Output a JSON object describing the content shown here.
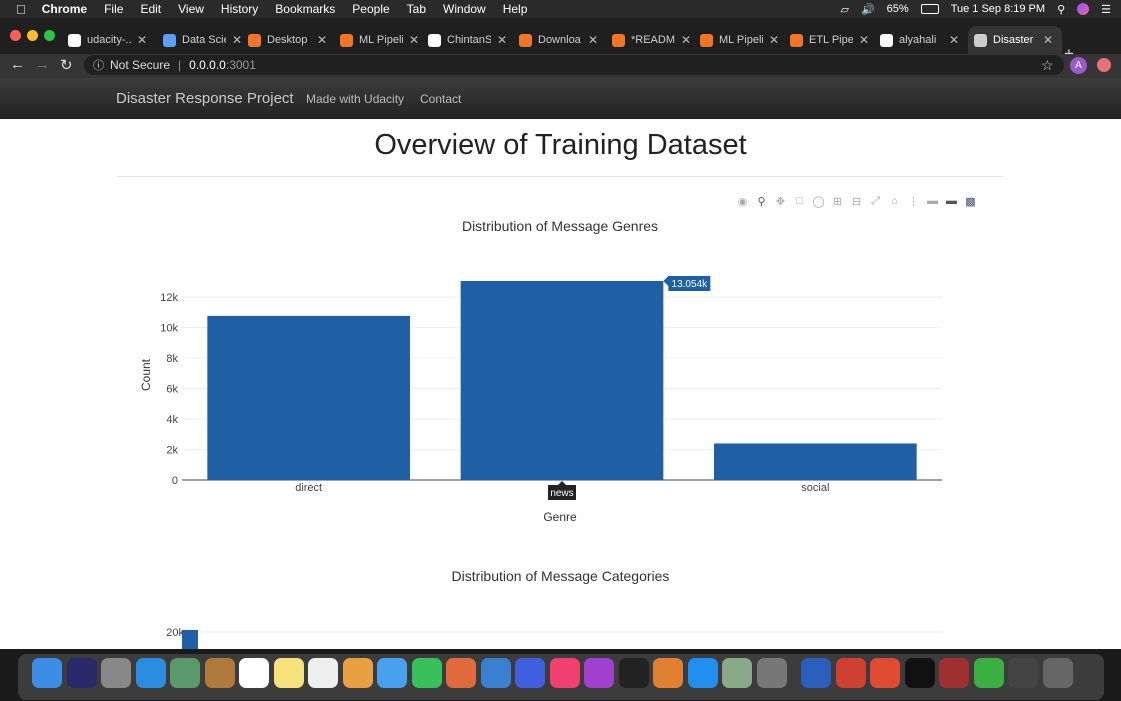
{
  "menubar": {
    "app": "Chrome",
    "items": [
      "File",
      "Edit",
      "View",
      "History",
      "Bookmarks",
      "People",
      "Tab",
      "Window",
      "Help"
    ],
    "battery": "65%",
    "datetime": "Tue 1 Sep  8:19 PM"
  },
  "tabs": [
    {
      "label": "udacity-...",
      "icon": "github-icon",
      "color": "#ffffff"
    },
    {
      "label": "Data Scie",
      "icon": "udacity-icon",
      "color": "#5aa0ff"
    },
    {
      "label": "Desktop",
      "icon": "jupyter-icon",
      "color": "#f37626"
    },
    {
      "label": "ML Pipeli",
      "icon": "notebook-icon",
      "color": "#f37626"
    },
    {
      "label": "ChintanS",
      "icon": "github-icon",
      "color": "#ffffff"
    },
    {
      "label": "Downloa",
      "icon": "jupyter-icon",
      "color": "#f37626"
    },
    {
      "label": "*READM",
      "icon": "document-icon",
      "color": "#f37626"
    },
    {
      "label": "ML Pipeli",
      "icon": "notebook-icon",
      "color": "#f37626"
    },
    {
      "label": "ETL Pipe",
      "icon": "notebook-icon",
      "color": "#f37626"
    },
    {
      "label": "alyahali",
      "icon": "github-icon",
      "color": "#ffffff"
    },
    {
      "label": "Disaster",
      "icon": "globe-icon",
      "color": "#cccccc",
      "active": true
    }
  ],
  "address": {
    "security": "Not Secure",
    "host": "0.0.0.0",
    "port": ":3001",
    "profile_initial": "A"
  },
  "navbar": {
    "brand": "Disaster Response Project",
    "links": [
      "Made with Udacity",
      "Contact"
    ]
  },
  "page": {
    "heading": "Overview of Training Dataset"
  },
  "hover": {
    "value_label": "13.054k",
    "category_label": "news"
  },
  "chart_data": [
    {
      "type": "bar",
      "title": "Distribution of Message Genres",
      "categories": [
        "direct",
        "news",
        "social"
      ],
      "values": [
        10766,
        13054,
        2396
      ],
      "xlabel": "Genre",
      "ylabel": "Count",
      "ylim": [
        0,
        13054
      ],
      "yticks": [
        0,
        2000,
        4000,
        6000,
        8000,
        10000,
        12000
      ],
      "yticklabels": [
        "0",
        "2k",
        "4k",
        "6k",
        "8k",
        "10k",
        "12k"
      ],
      "grid": true,
      "color": "#1f5fa6"
    },
    {
      "type": "bar",
      "title": "Distribution of Message Categories",
      "yticklabels": [
        "20k"
      ],
      "color": "#1f5fa6"
    }
  ],
  "colors": {
    "bar": "#1f5fa6",
    "navbar": "#2a2a2a",
    "text": "#222222"
  }
}
